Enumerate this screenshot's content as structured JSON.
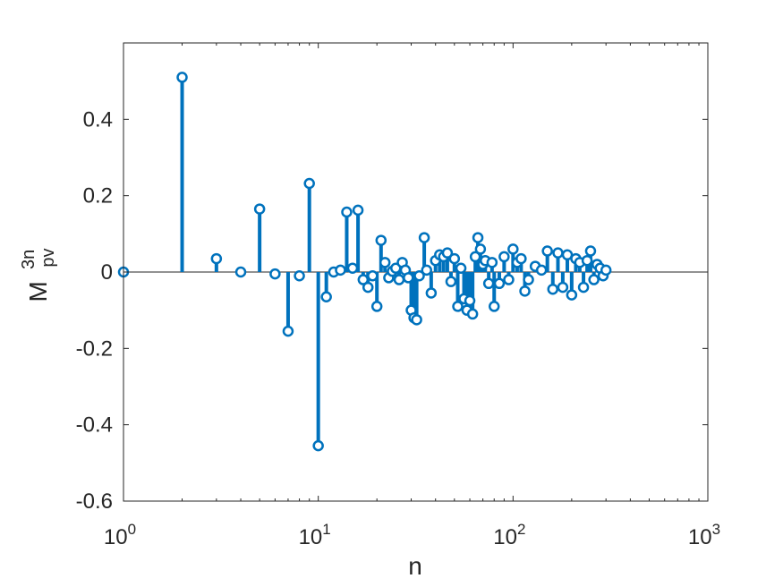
{
  "chart_data": {
    "type": "stem",
    "xscale": "log",
    "xlim": [
      1,
      1000
    ],
    "ylim": [
      -0.6,
      0.6
    ],
    "xlabel": "n",
    "ylabel": {
      "base": "M",
      "superscript": "3n",
      "subscript": "pv"
    },
    "x_ticks": [
      {
        "value": 1,
        "base": "10",
        "exp": "0"
      },
      {
        "value": 10,
        "base": "10",
        "exp": "1"
      },
      {
        "value": 100,
        "base": "10",
        "exp": "2"
      },
      {
        "value": 1000,
        "base": "10",
        "exp": "3"
      }
    ],
    "y_ticks": [
      {
        "value": 0.4,
        "label": "0.4"
      },
      {
        "value": 0.2,
        "label": "0.2"
      },
      {
        "value": 0,
        "label": "0"
      },
      {
        "value": -0.2,
        "label": "-0.2"
      },
      {
        "value": -0.4,
        "label": "-0.4"
      },
      {
        "value": -0.6,
        "label": "-0.6"
      }
    ],
    "color": "#0072BD",
    "baseline": 0,
    "series": [
      {
        "x": [
          1,
          2,
          3,
          4,
          5,
          6,
          7,
          8,
          9,
          10,
          11,
          12,
          13,
          14,
          15,
          16,
          17,
          18,
          19,
          20,
          21,
          22,
          23,
          24,
          25,
          26,
          27,
          28,
          29,
          30,
          31,
          32,
          33,
          35,
          36,
          38,
          40,
          42,
          44,
          46,
          48,
          50,
          52,
          54,
          56,
          58,
          60,
          62,
          64,
          66,
          68,
          70,
          72,
          75,
          78,
          80,
          85,
          90,
          95,
          100,
          105,
          110,
          115,
          120,
          130,
          140,
          150,
          160,
          170,
          180,
          190,
          200,
          210,
          220,
          230,
          240,
          250,
          260,
          270,
          280,
          290,
          300
        ],
        "y": [
          0,
          0.51,
          0.035,
          0,
          0.165,
          -0.005,
          -0.155,
          -0.01,
          0.232,
          -0.455,
          -0.065,
          0,
          0.005,
          0.157,
          0.01,
          0.162,
          -0.02,
          -0.04,
          -0.01,
          -0.09,
          0.083,
          0.025,
          -0.015,
          0.002,
          0.01,
          -0.02,
          0.025,
          0.005,
          -0.015,
          -0.1,
          -0.12,
          -0.125,
          -0.01,
          0.09,
          0.005,
          -0.055,
          0.03,
          0.045,
          0.04,
          0.05,
          -0.025,
          0.035,
          -0.09,
          0.01,
          -0.07,
          -0.1,
          -0.075,
          -0.11,
          0.04,
          0.09,
          0.06,
          0.02,
          0.03,
          -0.03,
          0.025,
          -0.09,
          -0.03,
          0.04,
          -0.02,
          0.06,
          0.025,
          0.035,
          -0.05,
          -0.02,
          0.015,
          0.005,
          0.055,
          -0.045,
          0.05,
          -0.04,
          0.045,
          -0.06,
          0.035,
          0.025,
          -0.04,
          0.03,
          0.055,
          -0.02,
          0.02,
          0.01,
          -0.01,
          0.005
        ]
      }
    ]
  }
}
